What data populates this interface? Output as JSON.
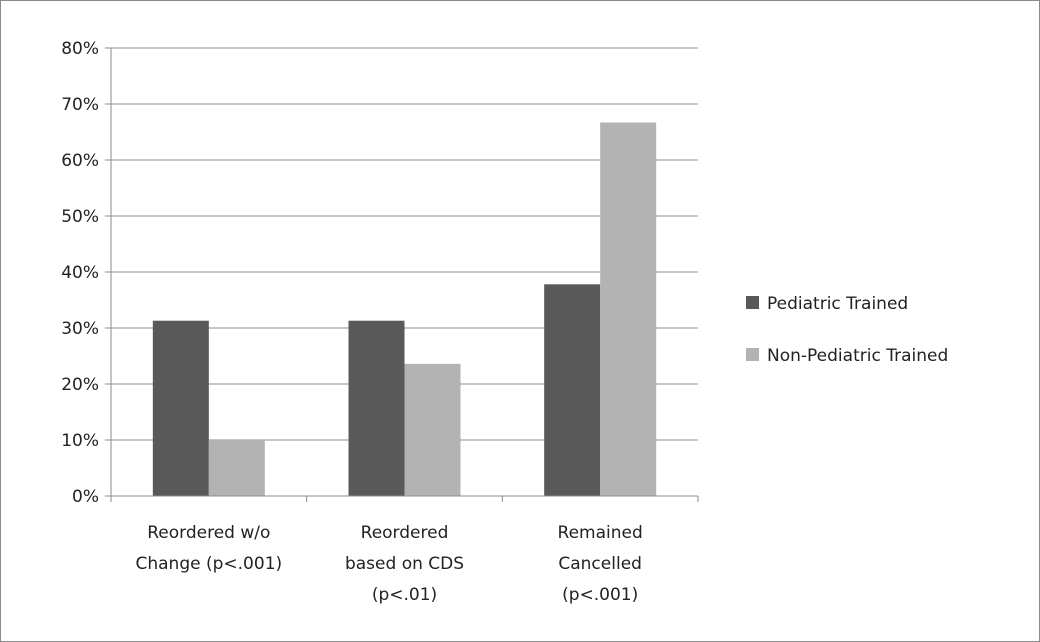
{
  "chart_data": {
    "type": "bar",
    "categories": [
      [
        "Reordered w/o",
        "Change (p<.001)"
      ],
      [
        "Reordered",
        "based on CDS",
        "(p<.01)"
      ],
      [
        "Remained",
        "Cancelled",
        "(p<.001)"
      ]
    ],
    "series": [
      {
        "name": "Pediatric Trained",
        "color": "#595959",
        "values": [
          31.3,
          31.3,
          37.8
        ]
      },
      {
        "name": "Non-Pediatric Trained",
        "color": "#b3b3b3",
        "values": [
          10.0,
          23.6,
          66.7
        ]
      }
    ],
    "ylim": [
      0,
      80
    ],
    "yticks": [
      0,
      10,
      20,
      30,
      40,
      50,
      60,
      70,
      80
    ],
    "ytick_format": "{v}%",
    "grid": true,
    "legend_position": "right",
    "title": "",
    "xlabel": "",
    "ylabel": ""
  }
}
